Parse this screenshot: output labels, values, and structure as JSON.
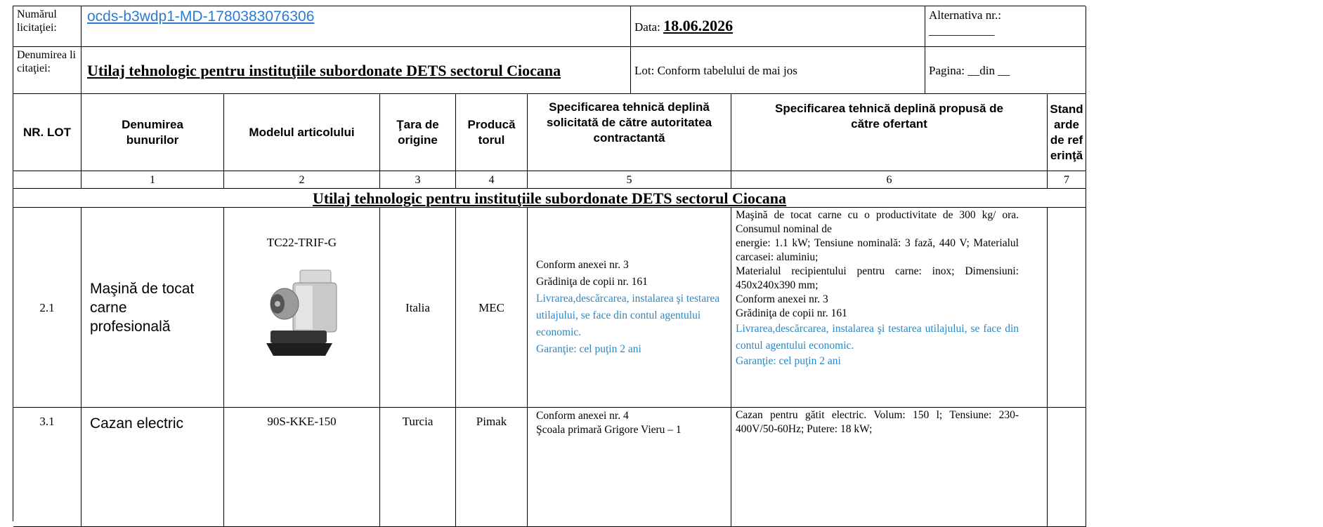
{
  "header": {
    "tender_number_label": "Numărul licitaţiei:",
    "tender_number": "ocds-b3wdp1-MD-1780383076306",
    "date_label": "Data:",
    "date": "18.06.2026",
    "alternative_label": "Alternativa nr.:",
    "alternative_blank": "___________",
    "tender_name_label": "Denumirea licitaţiei:",
    "tender_name": "Utilaj tehnologic pentru instituţiile subordonate DETS sectorul Ciocana",
    "lot": "Lot: Conform tabelului de mai jos",
    "page": "Pagina: __din __"
  },
  "table": {
    "columns": [
      "NR. LOT",
      "Denumirea bunurilor",
      "Modelul articolului",
      "Ţara de origine",
      "Producătorul",
      "Specificarea tehnică deplină solicitată de către autoritatea contractantă",
      "Specificarea tehnică deplină propusă de către ofertant",
      "Standarde de referinţă"
    ],
    "column_numbers": [
      "1",
      "2",
      "3",
      "4",
      "5",
      "6",
      "7"
    ],
    "section": "Utilaj tehnologic pentru instituţiile subordonate DETS sectorul Ciocana",
    "rows": [
      {
        "lot": "2.1",
        "name": "Maşină de tocat carne profesională",
        "model": "TC22-TRIF-G",
        "country": "Italia",
        "producer": "MEC",
        "requested_spec": [
          "Conform anexei nr. 3",
          "Grădiniţa de copii nr. 161"
        ],
        "requested_notes": [
          "Livrarea,descărcarea, instalarea şi testarea utilajului, se face din contul agentului economic.",
          "Garanţie: cel puţin 2 ani"
        ],
        "offered_spec": [
          "Maşină de tocat carne cu o productivitate de 300 kg/ ora. Consumul nominal de",
          "energie: 1.1 kW; Tensiune nominală: 3 fază, 440 V; Materialul carcasei: aluminiu;",
          "Materialul recipientului pentru carne: inox; Dimensiuni: 450x240x390 mm;",
          "Conform anexei nr. 3",
          "Grădiniţa de copii nr. 161"
        ],
        "offered_notes": [
          "Livrarea,descărcarea, instalarea şi testarea utilajului, se face din contul agentului economic.",
          "Garanţie: cel puţin 2 ani"
        ]
      },
      {
        "lot": "3.1",
        "name": "Cazan electric",
        "model": "90S-KKE-150",
        "country": "Turcia",
        "producer": "Pimak",
        "requested_spec": [
          "Conform anexei nr. 4",
          "Şcoala primară Grigore Vieru – 1"
        ],
        "offered_spec": [
          "Cazan pentru gătit electric. Volum: 150 l; Tensiune: 230-400V/50-60Hz; Putere: 18 kW;"
        ]
      }
    ]
  }
}
